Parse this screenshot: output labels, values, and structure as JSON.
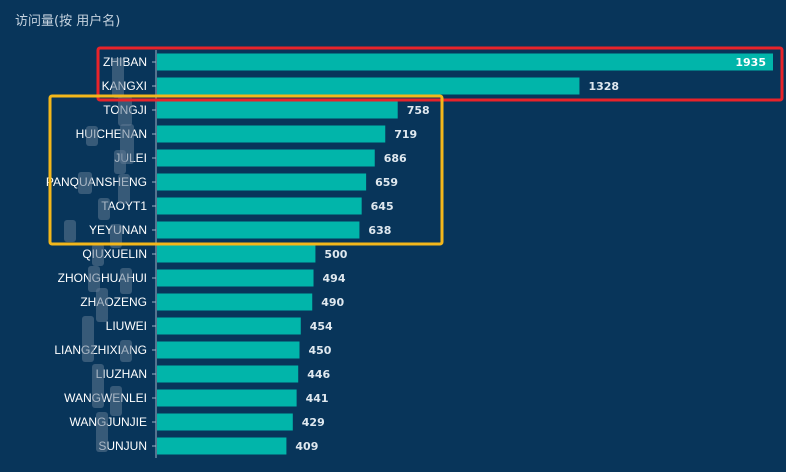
{
  "chart_data": {
    "type": "bar",
    "orientation": "horizontal",
    "title": "访问量(按 用户名)",
    "categories": [
      "ZHIBAN",
      "KANGXI",
      "TONGJI",
      "HUICHENAN",
      "JULEI",
      "PANQUANSHENG",
      "TAOYT1",
      "YEYUNAN",
      "QIUXUELIN",
      "ZHONGHUAHUI",
      "ZHAOZENG",
      "LIUWEI",
      "LIANGZHIXIANG",
      "LIUZHAN",
      "WANGWENLEI",
      "WANGJUNJIE",
      "SUNJUN"
    ],
    "values": [
      1935,
      1328,
      758,
      719,
      686,
      659,
      645,
      638,
      500,
      494,
      490,
      454,
      450,
      446,
      441,
      429,
      409
    ],
    "xlim": [
      0,
      1935
    ],
    "grid": false,
    "legend": "none",
    "bar_color": "#01b5aa",
    "background_color": "#08355a",
    "annotations": [
      {
        "kind": "rectangle",
        "color": "#e8232a",
        "covers": [
          "ZHIBAN",
          "KANGXI"
        ]
      },
      {
        "kind": "rectangle",
        "color": "#f3b71b",
        "covers": [
          "TONGJI",
          "HUICHENAN",
          "JULEI",
          "PANQUANSHENG",
          "TAOYT1",
          "YEYUNAN"
        ]
      }
    ]
  }
}
